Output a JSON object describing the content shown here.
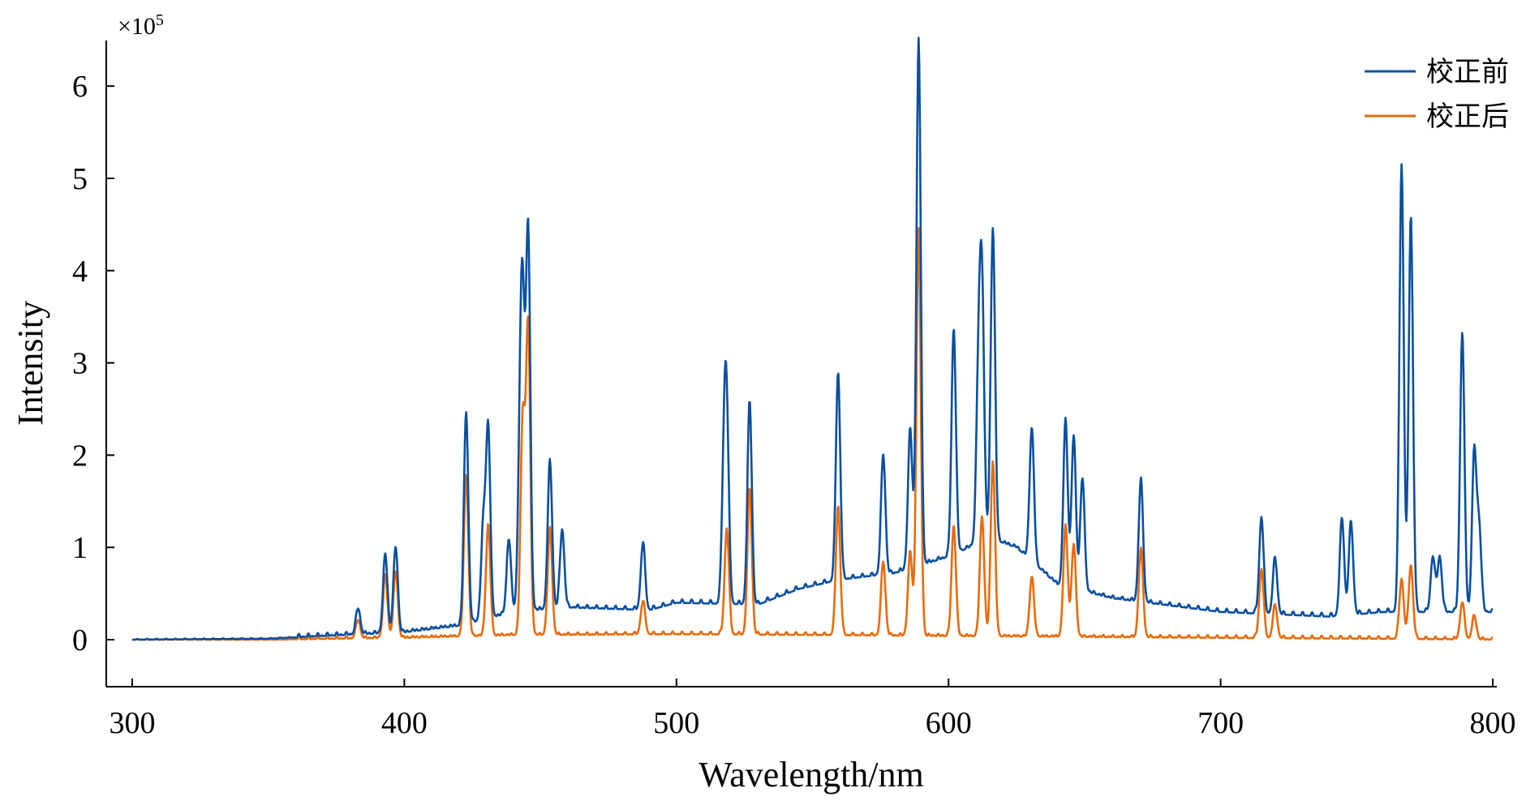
{
  "chart_data": {
    "type": "line",
    "xlabel": "Wavelength/nm",
    "ylabel": "Intensity",
    "y_multiplier": "×10",
    "y_multiplier_exp": "5",
    "xlim": [
      290,
      802
    ],
    "ylim": [
      -0.5,
      6.5
    ],
    "x_ticks": [
      300,
      400,
      500,
      600,
      700,
      800
    ],
    "x_tick_labels": [
      "300",
      "400",
      "500",
      "600",
      "700",
      "800"
    ],
    "y_ticks": [
      0,
      1,
      2,
      3,
      4,
      5,
      6
    ],
    "y_tick_labels": [
      "0",
      "1",
      "2",
      "3",
      "4",
      "5",
      "6"
    ],
    "grid": false,
    "legend_position": "top-right",
    "series": [
      {
        "name": "校正前",
        "color": "#0a4fa0",
        "baseline": [
          [
            300,
            0
          ],
          [
            350,
            0.01
          ],
          [
            370,
            0.04
          ],
          [
            400,
            0.08
          ],
          [
            420,
            0.15
          ],
          [
            440,
            0.3
          ],
          [
            460,
            0.35
          ],
          [
            490,
            0.32
          ],
          [
            500,
            0.4
          ],
          [
            530,
            0.38
          ],
          [
            545,
            0.55
          ],
          [
            560,
            0.65
          ],
          [
            580,
            0.72
          ],
          [
            600,
            0.9
          ],
          [
            615,
            1.1
          ],
          [
            625,
            1.0
          ],
          [
            640,
            0.6
          ],
          [
            660,
            0.45
          ],
          [
            700,
            0.3
          ],
          [
            740,
            0.25
          ],
          [
            760,
            0.3
          ],
          [
            800,
            0.3
          ]
        ],
        "peaks": [
          [
            383,
            0.28
          ],
          [
            393,
            0.85
          ],
          [
            396.8,
            0.93
          ],
          [
            422.7,
            2.3
          ],
          [
            429,
            1.0
          ],
          [
            430.8,
            2.05
          ],
          [
            438.4,
            0.8
          ],
          [
            442.5,
            1.45
          ],
          [
            443.5,
            2.95
          ],
          [
            445.5,
            4.12
          ],
          [
            453.5,
            1.6
          ],
          [
            458,
            0.85
          ],
          [
            487.7,
            0.72
          ],
          [
            517.5,
            1.4
          ],
          [
            518.5,
            1.8
          ],
          [
            526.9,
            2.2
          ],
          [
            559.4,
            2.25
          ],
          [
            576,
            1.3
          ],
          [
            585.9,
            1.5
          ],
          [
            589,
            5.7
          ],
          [
            601.9,
            2.45
          ],
          [
            611,
            1.75
          ],
          [
            612.3,
            2.65
          ],
          [
            616.3,
            3.38
          ],
          [
            630.6,
            1.45
          ],
          [
            643,
            1.8
          ],
          [
            646,
            1.65
          ],
          [
            649.2,
            1.22
          ],
          [
            670.7,
            1.32
          ],
          [
            715,
            1.05
          ],
          [
            720,
            0.6
          ],
          [
            744.6,
            1.05
          ],
          [
            747.9,
            1.0
          ],
          [
            766.5,
            4.85
          ],
          [
            769.9,
            4.3
          ],
          [
            778,
            0.6
          ],
          [
            780.5,
            0.6
          ],
          [
            788.8,
            3.03
          ],
          [
            793.2,
            1.72
          ],
          [
            795,
            0.9
          ]
        ]
      },
      {
        "name": "校正后",
        "color": "#ea6a0a",
        "baseline": [
          [
            300,
            0
          ],
          [
            350,
            0.0
          ],
          [
            400,
            0.02
          ],
          [
            440,
            0.05
          ],
          [
            500,
            0.06
          ],
          [
            560,
            0.05
          ],
          [
            600,
            0.04
          ],
          [
            650,
            0.03
          ],
          [
            700,
            0.02
          ],
          [
            760,
            0.01
          ],
          [
            800,
            0
          ]
        ],
        "peaks": [
          [
            383,
            0.2
          ],
          [
            393,
            0.68
          ],
          [
            396.8,
            0.72
          ],
          [
            422.7,
            1.75
          ],
          [
            430.8,
            1.2
          ],
          [
            443.5,
            2.33
          ],
          [
            445.5,
            3.35
          ],
          [
            453.5,
            1.15
          ],
          [
            487.7,
            0.35
          ],
          [
            518.5,
            1.15
          ],
          [
            526.9,
            1.58
          ],
          [
            559.4,
            1.4
          ],
          [
            576,
            0.8
          ],
          [
            585.9,
            0.9
          ],
          [
            589,
            4.4
          ],
          [
            601.9,
            1.2
          ],
          [
            612.3,
            1.3
          ],
          [
            616.3,
            1.9
          ],
          [
            630.6,
            0.65
          ],
          [
            643,
            1.2
          ],
          [
            646,
            1.0
          ],
          [
            670.7,
            0.95
          ],
          [
            715,
            0.75
          ],
          [
            720,
            0.35
          ],
          [
            766.5,
            0.65
          ],
          [
            769.9,
            0.8
          ],
          [
            788.8,
            0.4
          ],
          [
            793.2,
            0.25
          ]
        ]
      }
    ]
  }
}
